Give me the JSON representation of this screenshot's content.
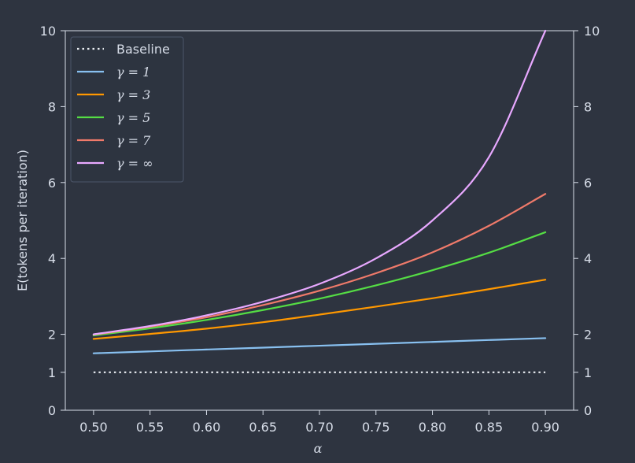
{
  "chart_data": {
    "type": "line",
    "xlabel": "α",
    "ylabel": "E(tokens per iteration)",
    "xlim": [
      0.475,
      0.925
    ],
    "ylim": [
      0,
      10
    ],
    "x_ticks": [
      "0.50",
      "0.55",
      "0.60",
      "0.65",
      "0.70",
      "0.75",
      "0.80",
      "0.85",
      "0.90"
    ],
    "y_ticks": [
      "0",
      "1",
      "2",
      "4",
      "6",
      "8",
      "10"
    ],
    "right_y_ticks": [
      "0",
      "1",
      "2",
      "4",
      "6",
      "8",
      "10"
    ],
    "grid": false,
    "legend_position": "top-left",
    "x": [
      0.5,
      0.55,
      0.6,
      0.65,
      0.7,
      0.75,
      0.8,
      0.85,
      0.9
    ],
    "series": [
      {
        "name": "Baseline",
        "color": "#eceff4",
        "style": "dotted",
        "values": [
          1,
          1,
          1,
          1,
          1,
          1,
          1,
          1,
          1
        ]
      },
      {
        "name": "γ = 1",
        "color": "#88c0f0",
        "style": "solid",
        "values": [
          1.5,
          1.55,
          1.6,
          1.65,
          1.7,
          1.75,
          1.8,
          1.85,
          1.9
        ]
      },
      {
        "name": "γ = 3",
        "color": "#ff9800",
        "style": "solid",
        "values": [
          1.88,
          2.01,
          2.15,
          2.32,
          2.52,
          2.73,
          2.95,
          3.19,
          3.44
        ]
      },
      {
        "name": "γ = 5",
        "color": "#55dd44",
        "style": "solid",
        "values": [
          1.97,
          2.16,
          2.38,
          2.64,
          2.94,
          3.29,
          3.69,
          4.15,
          4.69
        ]
      },
      {
        "name": "γ = 7",
        "color": "#f07a6a",
        "style": "solid",
        "values": [
          1.99,
          2.2,
          2.45,
          2.77,
          3.15,
          3.61,
          4.16,
          4.86,
          5.7
        ]
      },
      {
        "name": "γ = ∞",
        "color": "#e8a8ff",
        "style": "solid",
        "values": [
          2.0,
          2.22,
          2.5,
          2.86,
          3.33,
          4.0,
          5.0,
          6.67,
          10.0
        ]
      }
    ]
  }
}
